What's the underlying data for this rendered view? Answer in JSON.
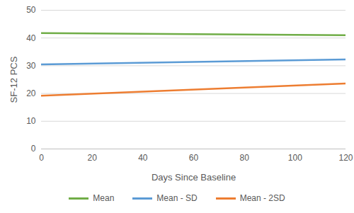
{
  "chart_data": {
    "type": "line",
    "x_label": "Days Since Baseline",
    "y_label": "SF-12 PCS",
    "xlim": [
      0,
      120
    ],
    "xticks": [
      0,
      20,
      40,
      60,
      80,
      100,
      120
    ],
    "ylim": [
      0,
      50
    ],
    "yticks": [
      0,
      10,
      20,
      30,
      40,
      50
    ],
    "grid": true,
    "legend": "bottom",
    "x": [
      0,
      120
    ],
    "series": [
      {
        "name": "Mean",
        "color": "#70ad47",
        "values": [
          41.8,
          41.0
        ]
      },
      {
        "name": "Mean - SD",
        "color": "#5b9bd5",
        "values": [
          30.5,
          32.3
        ]
      },
      {
        "name": "Mean - 2SD",
        "color": "#ed7d31",
        "values": [
          19.2,
          23.6
        ]
      }
    ]
  }
}
